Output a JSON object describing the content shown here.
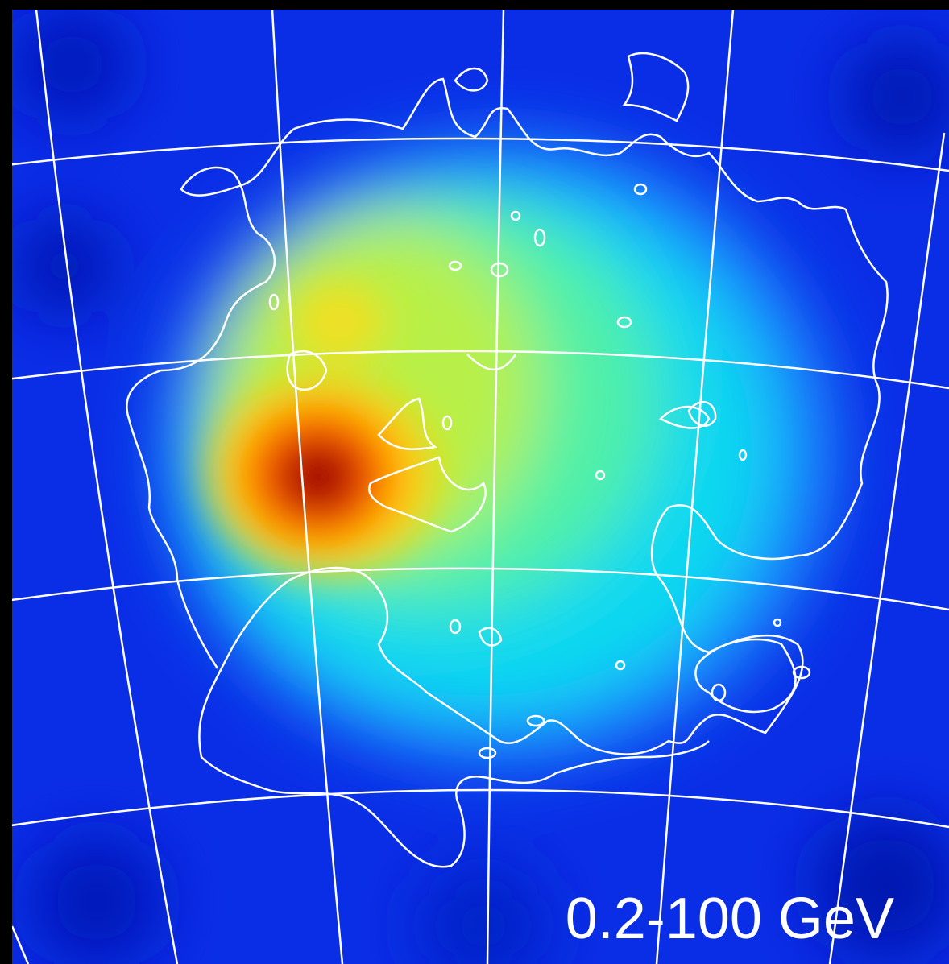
{
  "label": "0.2-100 GeV"
}
